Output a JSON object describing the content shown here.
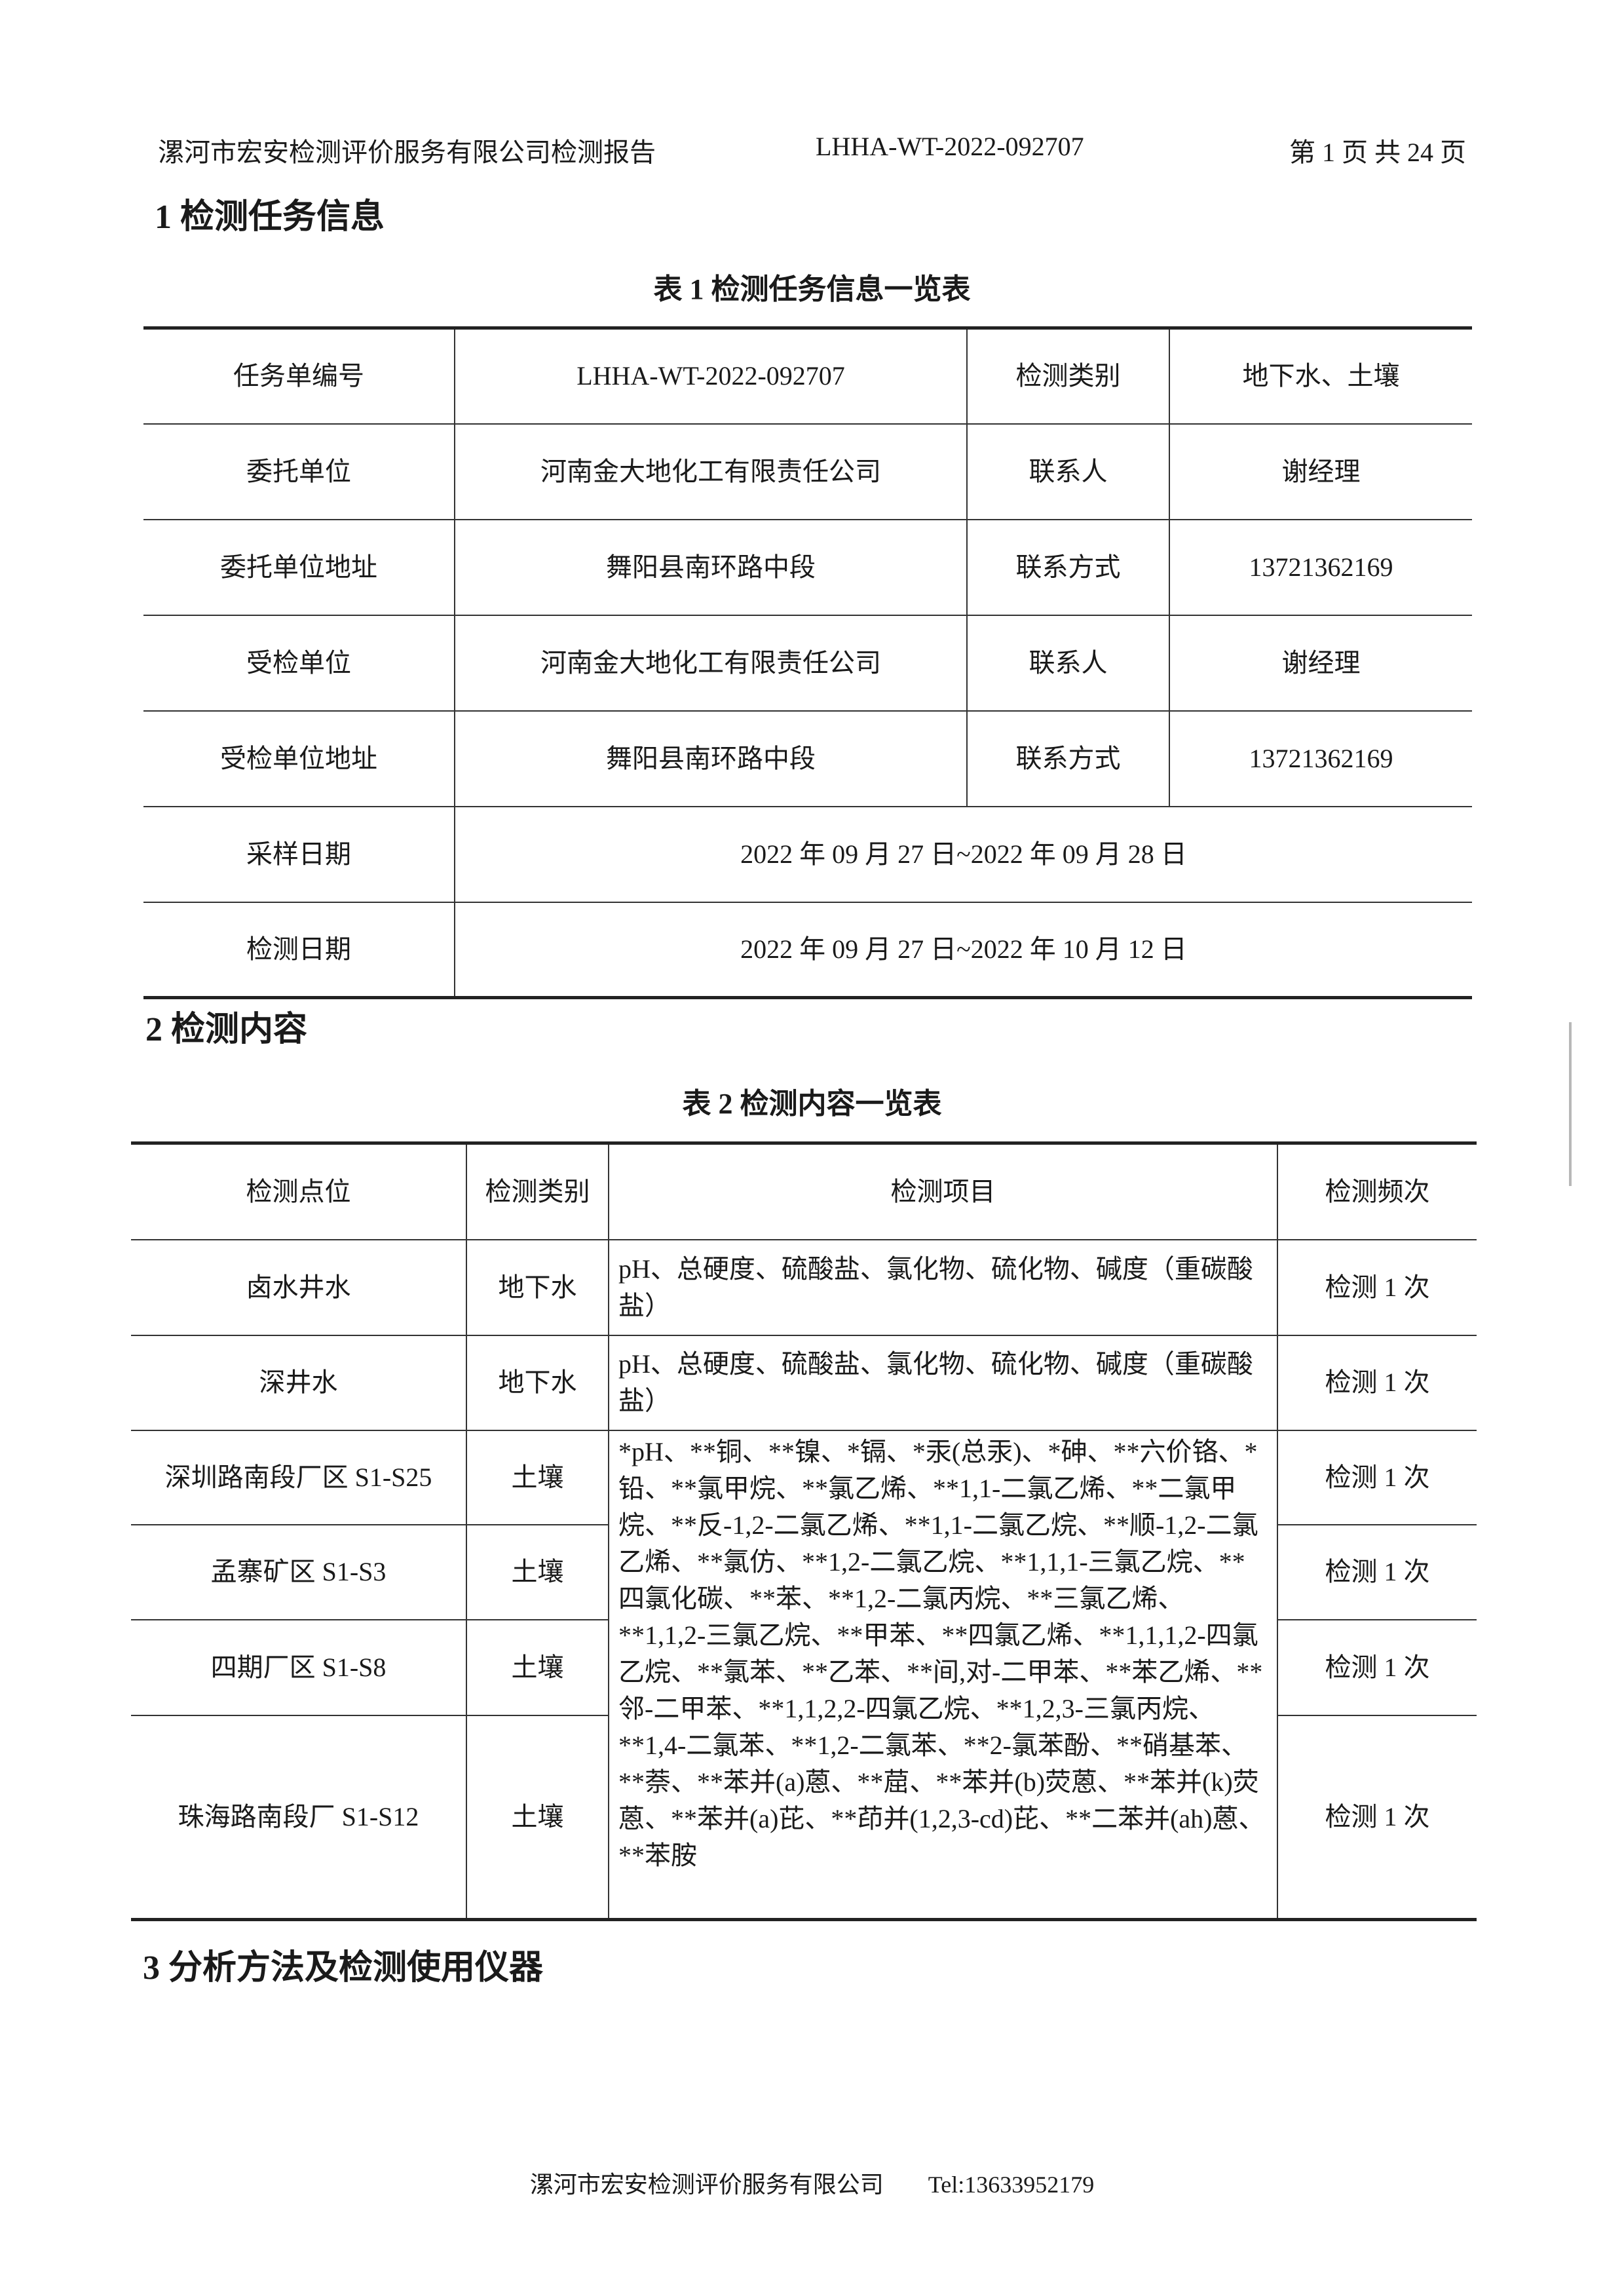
{
  "header": {
    "company_report": "漯河市宏安检测评价服务有限公司检测报告",
    "report_no": "LHHA-WT-2022-092707",
    "page": "第 1 页 共 24 页"
  },
  "section1": {
    "heading": "1 检测任务信息",
    "table_title": "表 1  检测任务信息一览表",
    "rows": [
      [
        "任务单编号",
        "LHHA-WT-2022-092707",
        "检测类别",
        "地下水、土壤"
      ],
      [
        "委托单位",
        "河南金大地化工有限责任公司",
        "联系人",
        "谢经理"
      ],
      [
        "委托单位地址",
        "舞阳县南环路中段",
        "联系方式",
        "13721362169"
      ],
      [
        "受检单位",
        "河南金大地化工有限责任公司",
        "联系人",
        "谢经理"
      ],
      [
        "受检单位地址",
        "舞阳县南环路中段",
        "联系方式",
        "13721362169"
      ]
    ],
    "sampling_label": "采样日期",
    "sampling_value": "2022 年 09 月 27 日~2022 年 09 月 28 日",
    "testing_label": "检测日期",
    "testing_value": "2022 年 09 月 27 日~2022 年 10 月 12 日"
  },
  "section2": {
    "heading": "2 检测内容",
    "table_title": "表 2  检测内容一览表",
    "columns": [
      "检测点位",
      "检测类别",
      "检测项目",
      "检测频次"
    ],
    "rows": [
      {
        "point": "卤水井水",
        "type": "地下水",
        "items": "pH、总硬度、硫酸盐、氯化物、硫化物、碱度（重碳酸盐）",
        "freq": "检测 1 次"
      },
      {
        "point": "深井水",
        "type": "地下水",
        "items": "pH、总硬度、硫酸盐、氯化物、硫化物、碱度（重碳酸盐）",
        "freq": "检测 1 次"
      },
      {
        "point": "深圳路南段厂区 S1-S25",
        "type": "土壤",
        "freq": "检测 1 次"
      },
      {
        "point": "孟寨矿区 S1-S3",
        "type": "土壤",
        "freq": "检测 1 次"
      },
      {
        "point": "四期厂区 S1-S8",
        "type": "土壤",
        "freq": "检测 1 次"
      },
      {
        "point": "珠海路南段厂 S1-S12",
        "type": "土壤",
        "freq": "检测 1 次"
      }
    ],
    "soil_items": "*pH、**铜、**镍、*镉、*汞(总汞)、*砷、**六价铬、*铅、**氯甲烷、**氯乙烯、**1,1-二氯乙烯、**二氯甲烷、**反-1,2-二氯乙烯、**1,1-二氯乙烷、**顺-1,2-二氯乙烯、**氯仿、**1,2-二氯乙烷、**1,1,1-三氯乙烷、**四氯化碳、**苯、**1,2-二氯丙烷、**三氯乙烯、**1,1,2-三氯乙烷、**甲苯、**四氯乙烯、**1,1,1,2-四氯乙烷、**氯苯、**乙苯、**间,对-二甲苯、**苯乙烯、**邻-二甲苯、**1,1,2,2-四氯乙烷、**1,2,3-三氯丙烷、**1,4-二氯苯、**1,2-二氯苯、**2-氯苯酚、**硝基苯、**萘、**苯并(a)蒽、**䓛、**苯并(b)荧蒽、**苯并(k)荧蒽、**苯并(a)芘、**茚并(1,2,3-cd)芘、**二苯并(ah)蒽、**苯胺"
  },
  "section3": {
    "heading": "3 分析方法及检测使用仪器"
  },
  "footer": {
    "company": "漯河市宏安检测评价服务有限公司",
    "tel": "Tel:13633952179"
  }
}
